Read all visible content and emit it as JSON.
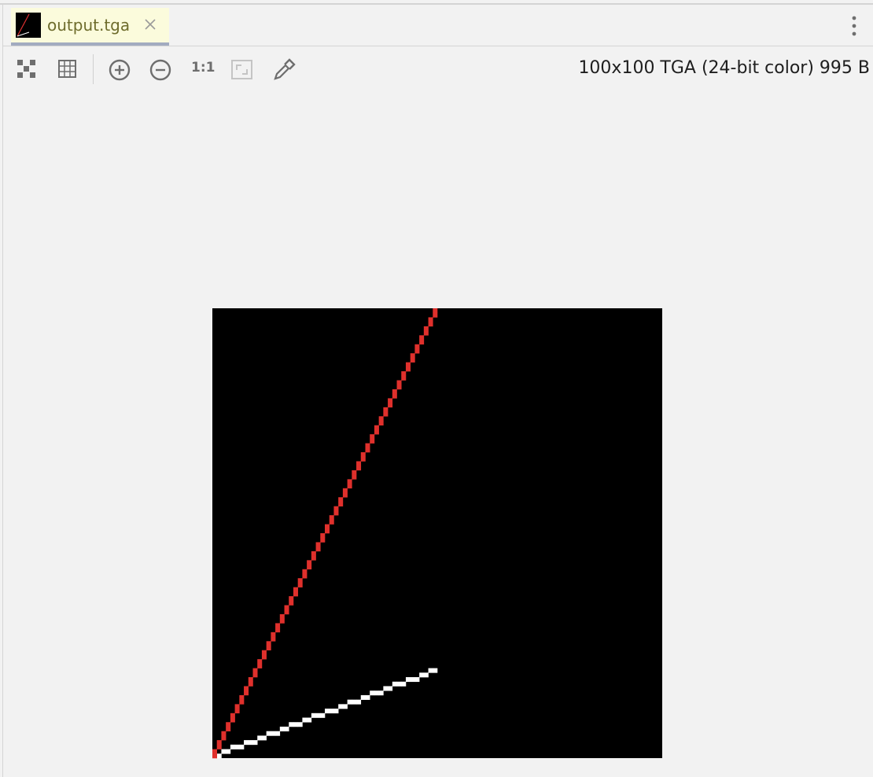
{
  "tab": {
    "title": "output.tga"
  },
  "toolbar": {
    "actual_size": "1:1",
    "info": "100x100 TGA (24-bit color) 995 B"
  }
}
